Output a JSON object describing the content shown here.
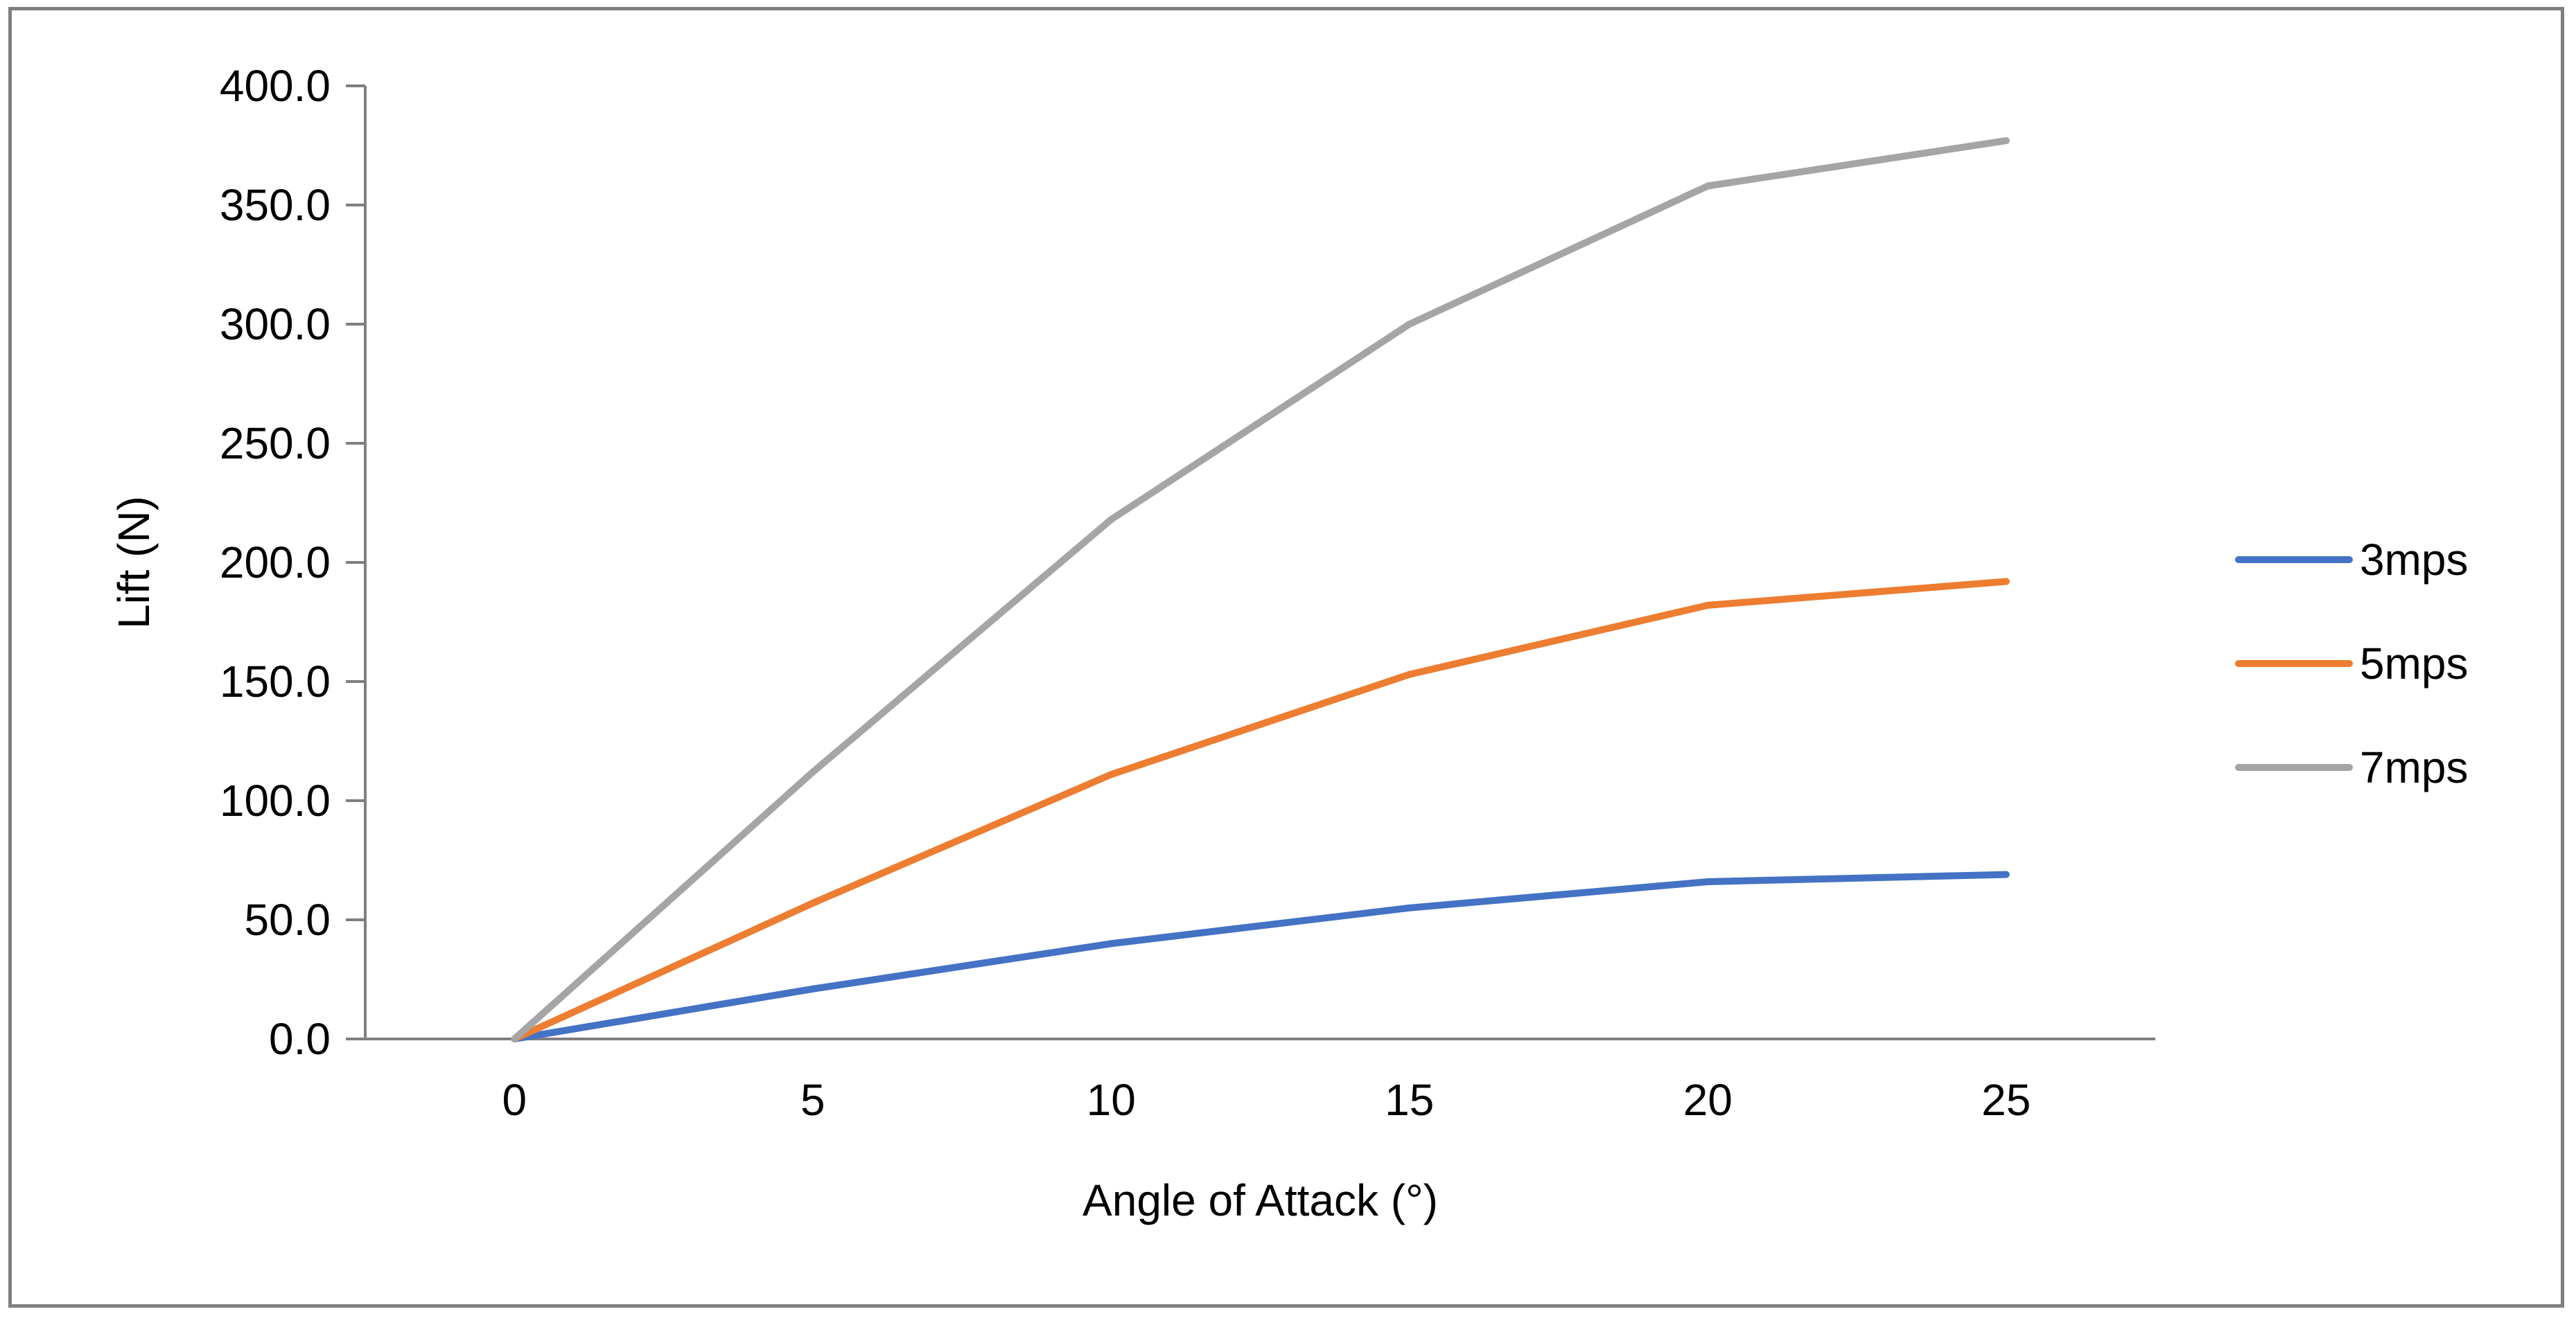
{
  "chart_data": {
    "type": "line",
    "title": "",
    "xlabel": "Angle of Attack (°)",
    "ylabel": "Lift (N)",
    "x": [
      0,
      5,
      10,
      15,
      20,
      25
    ],
    "x_tick_labels": [
      "0",
      "5",
      "10",
      "15",
      "20",
      "25"
    ],
    "ylim": [
      0,
      400
    ],
    "y_ticks": [
      0,
      50,
      100,
      150,
      200,
      250,
      300,
      350,
      400
    ],
    "y_tick_labels": [
      "0.0",
      "50.0",
      "100.0",
      "150.0",
      "200.0",
      "250.0",
      "300.0",
      "350.0",
      "400.0"
    ],
    "grid": false,
    "legend_position": "right",
    "series": [
      {
        "name": "3mps",
        "color": "#4472C4",
        "values": [
          0,
          21,
          40,
          55,
          66,
          69
        ]
      },
      {
        "name": "5mps",
        "color": "#ED7D31",
        "values": [
          0,
          57,
          111,
          153,
          182,
          192
        ]
      },
      {
        "name": "7mps",
        "color": "#A5A5A5",
        "values": [
          0,
          112,
          218,
          300,
          358,
          377
        ]
      }
    ]
  }
}
